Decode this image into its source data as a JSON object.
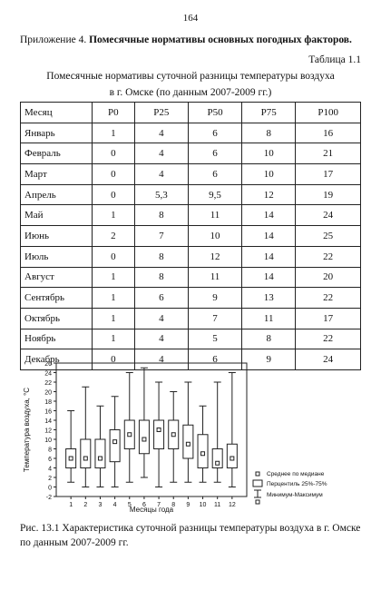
{
  "page_number": "164",
  "appendix": {
    "prefix": "Приложение 4.",
    "title": "Помесячные нормативы основных погодных факторов."
  },
  "table_label": "Таблица 1.1",
  "table_caption": {
    "line1": "Помесячные нормативы суточной разницы температуры воздуха",
    "line2": "в г. Омске (по данным 2007-2009 гг.)"
  },
  "table": {
    "headers": [
      "Месяц",
      "P0",
      "P25",
      "P50",
      "P75",
      "P100"
    ],
    "rows": [
      [
        "Январь",
        "1",
        "4",
        "6",
        "8",
        "16"
      ],
      [
        "Февраль",
        "0",
        "4",
        "6",
        "10",
        "21"
      ],
      [
        "Март",
        "0",
        "4",
        "6",
        "10",
        "17"
      ],
      [
        "Апрель",
        "0",
        "5,3",
        "9,5",
        "12",
        "19"
      ],
      [
        "Май",
        "1",
        "8",
        "11",
        "14",
        "24"
      ],
      [
        "Июнь",
        "2",
        "7",
        "10",
        "14",
        "25"
      ],
      [
        "Июль",
        "0",
        "8",
        "12",
        "14",
        "22"
      ],
      [
        "Август",
        "1",
        "8",
        "11",
        "14",
        "20"
      ],
      [
        "Сентябрь",
        "1",
        "6",
        "9",
        "13",
        "22"
      ],
      [
        "Октябрь",
        "1",
        "4",
        "7",
        "11",
        "17"
      ],
      [
        "Ноябрь",
        "1",
        "4",
        "5",
        "8",
        "22"
      ],
      [
        "Декабрь",
        "0",
        "4",
        "6",
        "9",
        "24"
      ]
    ]
  },
  "chart_data": {
    "type": "boxplot",
    "xlabel": "Месяцы года",
    "ylabel": "Температура воздуха, °C",
    "ylim": [
      -2,
      26
    ],
    "yticks": [
      -2,
      0,
      2,
      4,
      6,
      8,
      10,
      12,
      14,
      16,
      18,
      20,
      22,
      24,
      26
    ],
    "categories": [
      "1",
      "2",
      "3",
      "4",
      "5",
      "6",
      "7",
      "8",
      "9",
      "10",
      "11",
      "12"
    ],
    "boxes": [
      {
        "min": 1,
        "q1": 4,
        "median": 6,
        "q3": 8,
        "max": 16
      },
      {
        "min": 0,
        "q1": 4,
        "median": 6,
        "q3": 10,
        "max": 21
      },
      {
        "min": 0,
        "q1": 4,
        "median": 6,
        "q3": 10,
        "max": 17
      },
      {
        "min": 0,
        "q1": 5.3,
        "median": 9.5,
        "q3": 12,
        "max": 19
      },
      {
        "min": 1,
        "q1": 8,
        "median": 11,
        "q3": 14,
        "max": 24
      },
      {
        "min": 2,
        "q1": 7,
        "median": 10,
        "q3": 14,
        "max": 25
      },
      {
        "min": 0,
        "q1": 8,
        "median": 12,
        "q3": 14,
        "max": 22
      },
      {
        "min": 1,
        "q1": 8,
        "median": 11,
        "q3": 14,
        "max": 20
      },
      {
        "min": 1,
        "q1": 6,
        "median": 9,
        "q3": 13,
        "max": 22
      },
      {
        "min": 1,
        "q1": 4,
        "median": 7,
        "q3": 11,
        "max": 17
      },
      {
        "min": 1,
        "q1": 4,
        "median": 5,
        "q3": 8,
        "max": 22
      },
      {
        "min": 0,
        "q1": 4,
        "median": 6,
        "q3": 9,
        "max": 24
      }
    ],
    "legend": [
      "Среднее по медиане",
      "Перцентиль 25%-75%",
      "Минимум-Максимум"
    ],
    "legend_position": "bottom-right"
  },
  "figure_caption": "Рис. 13.1 Характеристика суточной разницы температуры воздуха в г. Омске по данным 2007-2009 гг."
}
